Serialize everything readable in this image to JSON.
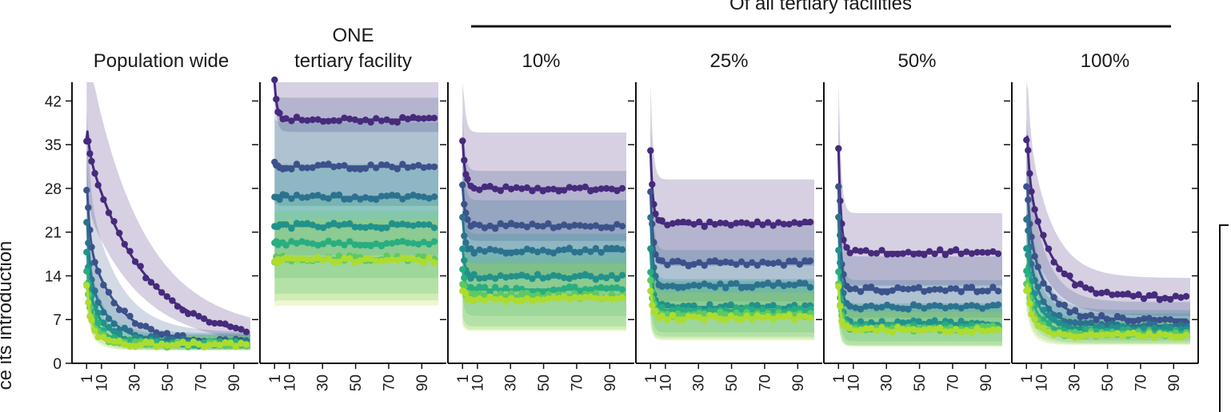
{
  "chart_data": {
    "type": "line",
    "figure_ylabel": "ce its introduction",
    "group_label": "Of all tertiary facilities",
    "y_ticks": [
      0,
      7,
      14,
      21,
      28,
      35,
      42
    ],
    "x_ticks": [
      1,
      10,
      30,
      50,
      70,
      90
    ],
    "ylim": [
      0,
      45
    ],
    "xlim": [
      -3,
      100
    ],
    "palette": [
      "#462a7c",
      "#3b528b",
      "#2c728e",
      "#21918c",
      "#28ae80",
      "#5ec962",
      "#addc30"
    ],
    "panels": [
      {
        "title_lines": [
          "Population wide"
        ],
        "series": [
          {
            "kind": "decay",
            "start": 36.0,
            "plateau": 3.5,
            "amp": 28.5,
            "tau": 33,
            "band_low": 0.72,
            "band_high": 1.45
          },
          {
            "kind": "decay",
            "start": 28.0,
            "plateau": 3.4,
            "amp": 14.0,
            "tau": 18,
            "band_low": 0.7,
            "band_high": 1.45
          },
          {
            "kind": "decay",
            "start": 23.0,
            "plateau": 3.3,
            "amp": 9.0,
            "tau": 13,
            "band_low": 0.7,
            "band_high": 1.45
          },
          {
            "kind": "decay",
            "start": 18.0,
            "plateau": 3.2,
            "amp": 6.5,
            "tau": 10,
            "band_low": 0.7,
            "band_high": 1.45
          },
          {
            "kind": "decay",
            "start": 15.0,
            "plateau": 3.1,
            "amp": 4.8,
            "tau": 8,
            "band_low": 0.7,
            "band_high": 1.45
          },
          {
            "kind": "decay",
            "start": 13.0,
            "plateau": 3.0,
            "amp": 3.6,
            "tau": 7,
            "band_low": 0.7,
            "band_high": 1.45
          },
          {
            "kind": "decay",
            "start": 12.0,
            "plateau": 3.0,
            "amp": 2.8,
            "tau": 6,
            "band_low": 0.7,
            "band_high": 1.45
          }
        ]
      },
      {
        "title_lines": [
          "ONE",
          "tertiary facility"
        ],
        "series": [
          {
            "kind": "flat",
            "start": 45.0,
            "level": 39.0,
            "band_low": 0.95,
            "band_high": 1.22
          },
          {
            "kind": "flat",
            "start": 32.0,
            "level": 31.5,
            "band_low": 0.8,
            "band_high": 1.35
          },
          {
            "kind": "flat",
            "start": 27.0,
            "level": 26.6,
            "band_low": 0.65,
            "band_high": 1.45
          },
          {
            "kind": "flat",
            "start": 22.0,
            "level": 22.0,
            "band_low": 0.62,
            "band_high": 1.45
          },
          {
            "kind": "flat",
            "start": 19.0,
            "level": 19.2,
            "band_low": 0.58,
            "band_high": 1.4
          },
          {
            "kind": "flat",
            "start": 16.5,
            "level": 16.8,
            "band_low": 0.6,
            "band_high": 1.45
          },
          {
            "kind": "flat",
            "start": 16.0,
            "level": 16.5,
            "band_low": 0.56,
            "band_high": 1.4
          }
        ]
      },
      {
        "title_lines": [
          "10%"
        ],
        "series": [
          {
            "kind": "flat",
            "start": 36.0,
            "level": 28.0,
            "band_low": 0.7,
            "band_high": 1.32
          },
          {
            "kind": "flat",
            "start": 28.5,
            "level": 22.0,
            "band_low": 0.62,
            "band_high": 1.4
          },
          {
            "kind": "flat",
            "start": 23.5,
            "level": 18.0,
            "band_low": 0.58,
            "band_high": 1.45
          },
          {
            "kind": "flat",
            "start": 18.5,
            "level": 13.8,
            "band_low": 0.55,
            "band_high": 1.5
          },
          {
            "kind": "flat",
            "start": 15.0,
            "level": 11.8,
            "band_low": 0.5,
            "band_high": 1.55
          },
          {
            "kind": "flat",
            "start": 13.0,
            "level": 10.8,
            "band_low": 0.5,
            "band_high": 1.55
          },
          {
            "kind": "flat",
            "start": 12.0,
            "level": 10.3,
            "band_low": 0.5,
            "band_high": 1.55
          }
        ]
      },
      {
        "title_lines": [
          "25%"
        ],
        "series": [
          {
            "kind": "flat",
            "start": 34.0,
            "level": 22.3,
            "band_low": 0.7,
            "band_high": 1.32
          },
          {
            "kind": "flat",
            "start": 27.5,
            "level": 16.0,
            "band_low": 0.62,
            "band_high": 1.42
          },
          {
            "kind": "flat",
            "start": 23.5,
            "level": 12.5,
            "band_low": 0.58,
            "band_high": 1.45
          },
          {
            "kind": "flat",
            "start": 18.0,
            "level": 9.0,
            "band_low": 0.55,
            "band_high": 1.5
          },
          {
            "kind": "flat",
            "start": 15.0,
            "level": 8.5,
            "band_low": 0.5,
            "band_high": 1.55
          },
          {
            "kind": "flat",
            "start": 13.0,
            "level": 7.8,
            "band_low": 0.5,
            "band_high": 1.55
          },
          {
            "kind": "flat",
            "start": 12.0,
            "level": 7.3,
            "band_low": 0.5,
            "band_high": 1.55
          }
        ]
      },
      {
        "title_lines": [
          "50%"
        ],
        "series": [
          {
            "kind": "flat",
            "start": 34.5,
            "level": 17.8,
            "band_low": 0.7,
            "band_high": 1.35
          },
          {
            "kind": "flat",
            "start": 28.5,
            "level": 11.8,
            "band_low": 0.62,
            "band_high": 1.45
          },
          {
            "kind": "flat",
            "start": 23.0,
            "level": 9.0,
            "band_low": 0.58,
            "band_high": 1.48
          },
          {
            "kind": "flat",
            "start": 18.0,
            "level": 6.4,
            "band_low": 0.55,
            "band_high": 1.5
          },
          {
            "kind": "flat",
            "start": 15.0,
            "level": 5.8,
            "band_low": 0.5,
            "band_high": 1.55
          },
          {
            "kind": "flat",
            "start": 13.0,
            "level": 5.5,
            "band_low": 0.5,
            "band_high": 1.55
          },
          {
            "kind": "flat",
            "start": 12.0,
            "level": 5.3,
            "band_low": 0.5,
            "band_high": 1.55
          }
        ]
      },
      {
        "title_lines": [
          "100%"
        ],
        "series": [
          {
            "kind": "decay",
            "start": 35.8,
            "plateau": 10.5,
            "amp": 16.0,
            "tau": 14,
            "band_low": 0.72,
            "band_high": 1.3
          },
          {
            "kind": "decay",
            "start": 28.0,
            "plateau": 7.0,
            "amp": 12.0,
            "tau": 11,
            "band_low": 0.7,
            "band_high": 1.4
          },
          {
            "kind": "decay",
            "start": 23.0,
            "plateau": 6.0,
            "amp": 9.0,
            "tau": 9,
            "band_low": 0.68,
            "band_high": 1.42
          },
          {
            "kind": "decay",
            "start": 18.0,
            "plateau": 5.5,
            "amp": 6.5,
            "tau": 8,
            "band_low": 0.66,
            "band_high": 1.45
          },
          {
            "kind": "decay",
            "start": 15.0,
            "plateau": 5.0,
            "amp": 5.0,
            "tau": 7,
            "band_low": 0.65,
            "band_high": 1.45
          },
          {
            "kind": "decay",
            "start": 13.0,
            "plateau": 4.7,
            "amp": 3.8,
            "tau": 6,
            "band_low": 0.65,
            "band_high": 1.45
          },
          {
            "kind": "decay",
            "start": 12.0,
            "plateau": 4.5,
            "amp": 3.0,
            "tau": 5,
            "band_low": 0.65,
            "band_high": 1.45
          }
        ]
      }
    ]
  }
}
